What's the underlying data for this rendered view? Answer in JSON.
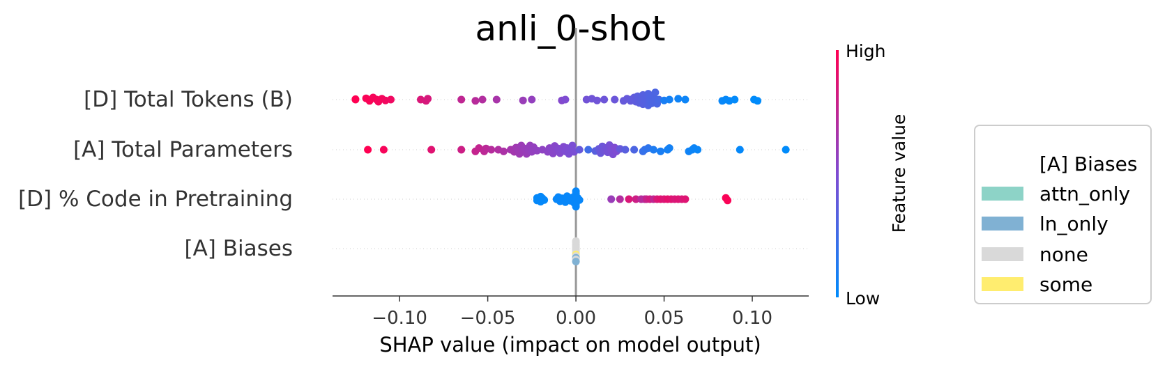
{
  "chart_data": {
    "type": "scatter",
    "subtype": "shap-beeswarm",
    "title": "anli_0-shot",
    "xlabel": "SHAP value (impact on model output)",
    "xlim": [
      -0.138,
      0.132
    ],
    "xticks": [
      -0.1,
      -0.05,
      0.0,
      0.05,
      0.1
    ],
    "xtick_labels": [
      "−0.10",
      "−0.05",
      "0.00",
      "0.05",
      "0.10"
    ],
    "features": [
      "[D] Total Tokens (B)",
      "[A] Total Parameters",
      "[D] % Code in Pretraining",
      "[A] Biases"
    ],
    "colorbar": {
      "label": "Feature value",
      "high_label": "High",
      "low_label": "Low",
      "high_color": "#ff0052",
      "low_color": "#008bfb"
    },
    "legend": {
      "title": "[A] Biases",
      "entries": [
        {
          "label": "attn_only",
          "color": "#8dd3c7"
        },
        {
          "label": "ln_only",
          "color": "#80b1d3"
        },
        {
          "label": "none",
          "color": "#d9d9d9"
        },
        {
          "label": "some",
          "color": "#ffed6f"
        }
      ]
    },
    "points": [
      [
        [
          -0.125,
          -0.1,
          1
        ],
        [
          -0.125,
          0,
          1
        ],
        [
          -0.119,
          -0.3,
          0.98
        ],
        [
          -0.117,
          0.3,
          0.98
        ],
        [
          -0.115,
          -0.5,
          0.97
        ],
        [
          -0.113,
          0,
          0.97
        ],
        [
          -0.112,
          0.5,
          0.96
        ],
        [
          -0.11,
          -0.2,
          0.96
        ],
        [
          -0.108,
          0.2,
          0.95
        ],
        [
          -0.105,
          0,
          0.94
        ],
        [
          -0.088,
          0,
          0.85
        ],
        [
          -0.085,
          0.3,
          0.84
        ],
        [
          -0.084,
          -0.2,
          0.84
        ],
        [
          -0.065,
          0,
          0.75
        ],
        [
          -0.057,
          0.3,
          0.72
        ],
        [
          -0.053,
          0,
          0.7
        ],
        [
          -0.045,
          0,
          0.66
        ],
        [
          -0.03,
          0.2,
          0.6
        ],
        [
          -0.025,
          0,
          0.58
        ],
        [
          -0.008,
          0.2,
          0.52
        ],
        [
          -0.006,
          0,
          0.5
        ],
        [
          0.006,
          0,
          0.45
        ],
        [
          0.009,
          -0.2,
          0.44
        ],
        [
          0.012,
          0.2,
          0.44
        ],
        [
          0.016,
          0,
          0.43
        ],
        [
          0.022,
          0,
          0.42
        ],
        [
          0.027,
          0.3,
          0.4
        ],
        [
          0.029,
          -0.2,
          0.4
        ],
        [
          0.031,
          0.3,
          0.39
        ],
        [
          0.032,
          -0.1,
          0.38
        ],
        [
          0.033,
          -0.5,
          0.38
        ],
        [
          0.034,
          0.5,
          0.37
        ],
        [
          0.035,
          0.1,
          0.37
        ],
        [
          0.035,
          -0.8,
          0.36
        ],
        [
          0.036,
          0.8,
          0.36
        ],
        [
          0.037,
          -0.3,
          0.35
        ],
        [
          0.037,
          0.3,
          0.35
        ],
        [
          0.038,
          -1.1,
          0.34
        ],
        [
          0.038,
          1.1,
          0.34
        ],
        [
          0.039,
          0.0,
          0.33
        ],
        [
          0.04,
          -0.6,
          0.33
        ],
        [
          0.04,
          0.6,
          0.33
        ],
        [
          0.041,
          -1.4,
          0.32
        ],
        [
          0.041,
          1.4,
          0.32
        ],
        [
          0.042,
          -0.2,
          0.31
        ],
        [
          0.042,
          0.2,
          0.31
        ],
        [
          0.043,
          -0.9,
          0.31
        ],
        [
          0.043,
          0.9,
          0.3
        ],
        [
          0.044,
          -0.4,
          0.3
        ],
        [
          0.044,
          0.4,
          0.3
        ],
        [
          0.045,
          0.0,
          0.3
        ],
        [
          0.045,
          -1.7,
          0.3
        ],
        [
          0.046,
          1.0,
          0.29
        ],
        [
          0.047,
          0.0,
          0.28
        ],
        [
          0.05,
          0.2,
          0.1
        ],
        [
          0.053,
          0.0,
          0.08
        ],
        [
          0.058,
          -0.2,
          0.06
        ],
        [
          0.062,
          0.0,
          0.05
        ],
        [
          0.083,
          0.3,
          0.03
        ],
        [
          0.085,
          0.0,
          0.02
        ],
        [
          0.087,
          0.3,
          0.02
        ],
        [
          0.09,
          0.0,
          0.01
        ],
        [
          0.101,
          0.0,
          0.0
        ],
        [
          0.103,
          0.3,
          0.0
        ]
      ],
      [
        [
          -0.118,
          0,
          1
        ],
        [
          -0.109,
          0,
          0.97
        ],
        [
          -0.082,
          0,
          0.88
        ],
        [
          -0.065,
          0,
          0.8
        ],
        [
          -0.057,
          0.4,
          0.77
        ],
        [
          -0.055,
          -0.4,
          0.76
        ],
        [
          -0.052,
          0.4,
          0.74
        ],
        [
          -0.051,
          -0.3,
          0.73
        ],
        [
          -0.048,
          0,
          0.71
        ],
        [
          -0.044,
          0,
          0.69
        ],
        [
          -0.041,
          0.4,
          0.67
        ],
        [
          -0.037,
          0.0,
          0.65
        ],
        [
          -0.035,
          0.5,
          0.64
        ],
        [
          -0.034,
          -0.5,
          0.63
        ],
        [
          -0.033,
          0.0,
          0.62
        ],
        [
          -0.032,
          1.0,
          0.62
        ],
        [
          -0.031,
          -1.0,
          0.61
        ],
        [
          -0.03,
          0.3,
          0.61
        ],
        [
          -0.029,
          -0.3,
          0.6
        ],
        [
          -0.028,
          1.0,
          0.6
        ],
        [
          -0.027,
          0.0,
          0.59
        ],
        [
          -0.026,
          -1.0,
          0.59
        ],
        [
          -0.025,
          0.5,
          0.58
        ],
        [
          -0.024,
          -0.6,
          0.58
        ],
        [
          -0.022,
          0.2,
          0.57
        ],
        [
          -0.019,
          0,
          0.56
        ],
        [
          -0.016,
          0.5,
          0.55
        ],
        [
          -0.015,
          -0.4,
          0.55
        ],
        [
          -0.014,
          0.0,
          0.54
        ],
        [
          -0.013,
          0.9,
          0.54
        ],
        [
          -0.012,
          -0.9,
          0.53
        ],
        [
          -0.011,
          0.3,
          0.53
        ],
        [
          -0.01,
          -0.3,
          0.52
        ],
        [
          -0.009,
          0.8,
          0.52
        ],
        [
          -0.008,
          0.0,
          0.51
        ],
        [
          -0.007,
          -0.7,
          0.51
        ],
        [
          -0.006,
          0.4,
          0.5
        ],
        [
          -0.005,
          -0.4,
          0.5
        ],
        [
          -0.004,
          1.0,
          0.49
        ],
        [
          -0.003,
          0.0,
          0.49
        ],
        [
          -0.002,
          -1.0,
          0.48
        ],
        [
          -0.001,
          0.5,
          0.48
        ],
        [
          0.002,
          0,
          0.4
        ],
        [
          0.007,
          0,
          0.25
        ],
        [
          0.011,
          0.3,
          0.35
        ],
        [
          0.013,
          -0.2,
          0.4
        ],
        [
          0.014,
          0.8,
          0.42
        ],
        [
          0.015,
          -0.8,
          0.43
        ],
        [
          0.016,
          0.2,
          0.44
        ],
        [
          0.017,
          -0.4,
          0.45
        ],
        [
          0.018,
          0.6,
          0.46
        ],
        [
          0.019,
          -1.1,
          0.47
        ],
        [
          0.02,
          0.0,
          0.48
        ],
        [
          0.021,
          1.1,
          0.49
        ],
        [
          0.022,
          -0.5,
          0.5
        ],
        [
          0.023,
          0.4,
          0.5
        ],
        [
          0.025,
          -0.2,
          0.4
        ],
        [
          0.028,
          0,
          0.35
        ],
        [
          0.033,
          0,
          0.3
        ],
        [
          0.038,
          0.4,
          0.22
        ],
        [
          0.039,
          0.0,
          0.2
        ],
        [
          0.041,
          -0.4,
          0.18
        ],
        [
          0.044,
          0,
          0.12
        ],
        [
          0.048,
          0.4,
          0.1
        ],
        [
          0.052,
          0.0,
          0.08
        ],
        [
          0.053,
          -0.4,
          0.08
        ],
        [
          0.064,
          0.4,
          0.06
        ],
        [
          0.066,
          0.0,
          0.05
        ],
        [
          0.067,
          -0.4,
          0.05
        ],
        [
          0.069,
          0.0,
          0.04
        ],
        [
          0.093,
          0,
          0.02
        ],
        [
          0.119,
          0,
          0.0
        ]
      ],
      [
        [
          -0.022,
          -0.3,
          0.02
        ],
        [
          -0.022,
          0.3,
          0.02
        ],
        [
          -0.021,
          0.0,
          0.02
        ],
        [
          -0.02,
          -0.6,
          0.02
        ],
        [
          -0.02,
          0.6,
          0.02
        ],
        [
          -0.019,
          -0.2,
          0.02
        ],
        [
          -0.018,
          0.2,
          0.02
        ],
        [
          -0.011,
          0.0,
          0.03
        ],
        [
          -0.01,
          -0.5,
          0.03
        ],
        [
          -0.009,
          0.5,
          0.03
        ],
        [
          -0.008,
          -0.2,
          0.03
        ],
        [
          -0.007,
          0.2,
          0.03
        ],
        [
          -0.006,
          0.7,
          0.03
        ],
        [
          -0.005,
          -0.7,
          0.03
        ],
        [
          -0.004,
          0.0,
          0.03
        ],
        [
          -0.003,
          0.4,
          0.03
        ],
        [
          -0.002,
          -0.4,
          0.03
        ],
        [
          -0.001,
          0.9,
          0.03
        ],
        [
          0.0,
          -0.1,
          0.03
        ],
        [
          0.0,
          -0.9,
          0.03
        ],
        [
          0.0,
          0.4,
          0.03
        ],
        [
          0.0,
          -1.4,
          0.03
        ],
        [
          0.0,
          1.3,
          0.03
        ],
        [
          0.0,
          -1.9,
          0.03
        ],
        [
          0.0,
          1.8,
          0.03
        ],
        [
          0.001,
          -0.3,
          0.03
        ],
        [
          0.002,
          0.2,
          0.03
        ],
        [
          0.02,
          0,
          0.6
        ],
        [
          0.025,
          0,
          0.7
        ],
        [
          0.03,
          0,
          0.85
        ],
        [
          0.034,
          0,
          0.8
        ],
        [
          0.037,
          0,
          0.72
        ],
        [
          0.039,
          0,
          0.7
        ],
        [
          0.04,
          0,
          0.78
        ],
        [
          0.042,
          0,
          0.82
        ],
        [
          0.044,
          0,
          0.75
        ],
        [
          0.046,
          0,
          0.85
        ],
        [
          0.048,
          0,
          0.88
        ],
        [
          0.05,
          0,
          0.86
        ],
        [
          0.052,
          0,
          0.9
        ],
        [
          0.054,
          0,
          0.88
        ],
        [
          0.056,
          0,
          0.85
        ],
        [
          0.058,
          0,
          0.87
        ],
        [
          0.06,
          0,
          0.85
        ],
        [
          0.062,
          0,
          0.87
        ],
        [
          0.085,
          -0.3,
          0.98
        ],
        [
          0.086,
          0.3,
          0.98
        ]
      ],
      [
        [
          0.0,
          -1.8,
          "none"
        ],
        [
          0.0,
          -1.4,
          "none"
        ],
        [
          0.0,
          -1.0,
          "none"
        ],
        [
          0.0,
          -0.6,
          "none"
        ],
        [
          0.0,
          -0.2,
          "none"
        ],
        [
          0.0,
          0.2,
          "none"
        ],
        [
          0.0,
          0.6,
          "none"
        ],
        [
          0.0,
          1.0,
          "none"
        ],
        [
          0.0,
          1.4,
          "some"
        ],
        [
          0.0,
          1.8,
          "none"
        ],
        [
          0.0,
          2.2,
          "ln_only"
        ],
        [
          0.0,
          2.6,
          "none"
        ],
        [
          0.0,
          3.1,
          "ln_only"
        ]
      ]
    ]
  }
}
